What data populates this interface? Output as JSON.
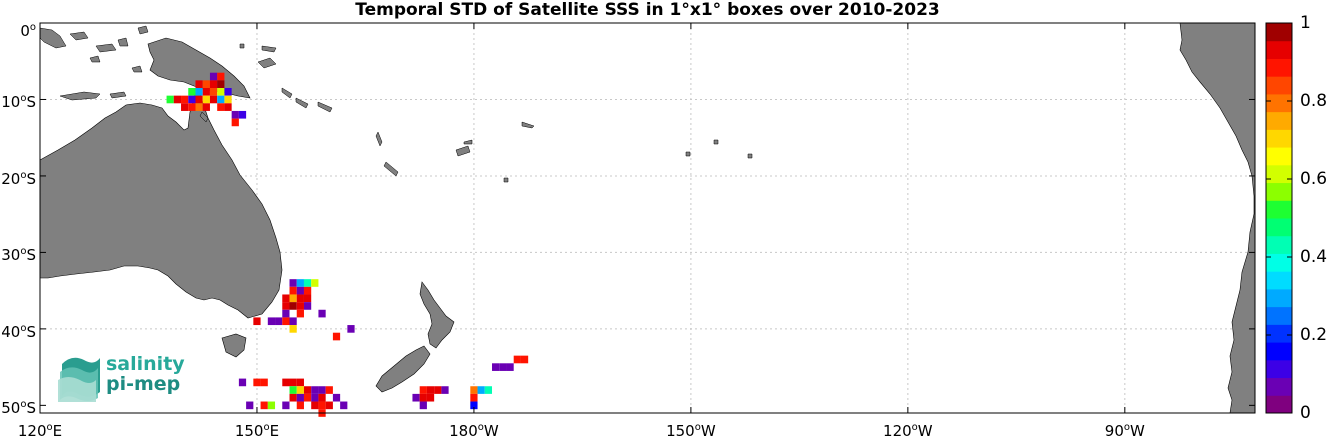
{
  "title": "Temporal STD of Satellite SSS in 1°x1° boxes over 2010-2023",
  "lat_ticks": [
    {
      "num": "0",
      "hemi": ""
    },
    {
      "num": "10",
      "hemi": "S"
    },
    {
      "num": "20",
      "hemi": "S"
    },
    {
      "num": "30",
      "hemi": "S"
    },
    {
      "num": "40",
      "hemi": "S"
    },
    {
      "num": "50",
      "hemi": "S"
    }
  ],
  "lon_ticks": [
    {
      "num": "120",
      "hemi": "E"
    },
    {
      "num": "150",
      "hemi": "E"
    },
    {
      "num": "180",
      "hemi": "W"
    },
    {
      "num": "150",
      "hemi": "W"
    },
    {
      "num": "120",
      "hemi": "W"
    },
    {
      "num": "90",
      "hemi": "W"
    }
  ],
  "colorbar": {
    "ticks": [
      "1",
      "0.8",
      "0.6",
      "0.4",
      "0.2",
      "0"
    ],
    "range": [
      0,
      1
    ],
    "colors": [
      "#7f007f",
      "#6a00b4",
      "#3c00e6",
      "#0000ff",
      "#0032ff",
      "#0073ff",
      "#00aaff",
      "#00dcff",
      "#00ffe6",
      "#00ffb4",
      "#00ff73",
      "#1eff32",
      "#8cff00",
      "#d2ff00",
      "#ffff00",
      "#ffd700",
      "#ffaa00",
      "#ff7300",
      "#ff4600",
      "#ff1400",
      "#e60000",
      "#a00000"
    ]
  },
  "logo": {
    "line1": "salinity",
    "line2": "pi-mep"
  },
  "chart_data": {
    "type": "heatmap",
    "title": "Temporal STD of Satellite SSS in 1°x1° boxes over 2010-2023",
    "xlim": [
      120,
      288
    ],
    "ylim": [
      -51,
      0
    ],
    "xunits": "degrees east (0-360)",
    "cells": [
      [
        144,
        -7,
        0.05
      ],
      [
        145,
        -7,
        0.9
      ],
      [
        142,
        -8,
        0.95
      ],
      [
        143,
        -8,
        0.85
      ],
      [
        144,
        -8,
        0.95
      ],
      [
        145,
        -8,
        1.0
      ],
      [
        141,
        -9,
        0.5
      ],
      [
        142,
        -9,
        0.3
      ],
      [
        143,
        -9,
        0.95
      ],
      [
        144,
        -9,
        0.85
      ],
      [
        145,
        -9,
        0.6
      ],
      [
        146,
        -9,
        0.1
      ],
      [
        138,
        -10,
        0.5
      ],
      [
        139,
        -10,
        0.95
      ],
      [
        140,
        -10,
        0.9
      ],
      [
        141,
        -10,
        0.1
      ],
      [
        142,
        -10,
        0.95
      ],
      [
        143,
        -10,
        0.7
      ],
      [
        144,
        -10,
        0.95
      ],
      [
        145,
        -10,
        0.3
      ],
      [
        146,
        -10,
        0.7
      ],
      [
        140,
        -11,
        0.95
      ],
      [
        141,
        -11,
        0.9
      ],
      [
        142,
        -11,
        0.8
      ],
      [
        143,
        -11,
        0.95
      ],
      [
        145,
        -11,
        0.9
      ],
      [
        146,
        -11,
        0.95
      ],
      [
        147,
        -12,
        0.05
      ],
      [
        148,
        -12,
        0.1
      ],
      [
        147,
        -13,
        0.9
      ],
      [
        155,
        -34,
        0.05
      ],
      [
        156,
        -34,
        0.3
      ],
      [
        157,
        -34,
        0.45
      ],
      [
        158,
        -34,
        0.6
      ],
      [
        155,
        -35,
        0.9
      ],
      [
        156,
        -35,
        0.05
      ],
      [
        157,
        -35,
        0.9
      ],
      [
        154,
        -36,
        0.95
      ],
      [
        155,
        -36,
        0.75
      ],
      [
        156,
        -36,
        0.95
      ],
      [
        157,
        -36,
        0.95
      ],
      [
        154,
        -37,
        0.95
      ],
      [
        155,
        -37,
        1.0
      ],
      [
        156,
        -37,
        0.95
      ],
      [
        157,
        -37,
        0.05
      ],
      [
        154,
        -38,
        0.05
      ],
      [
        156,
        -38,
        0.9
      ],
      [
        159,
        -38,
        0.05
      ],
      [
        150,
        -39,
        0.95
      ],
      [
        152,
        -39,
        0.05
      ],
      [
        153,
        -39,
        0.05
      ],
      [
        154,
        -39,
        0.9
      ],
      [
        155,
        -39,
        0.05
      ],
      [
        155,
        -40,
        0.7
      ],
      [
        163,
        -40,
        0.05
      ],
      [
        161,
        -41,
        0.9
      ],
      [
        148,
        -47,
        0.05
      ],
      [
        150,
        -47,
        0.9
      ],
      [
        151,
        -47,
        0.9
      ],
      [
        154,
        -47,
        0.95
      ],
      [
        155,
        -47,
        0.95
      ],
      [
        156,
        -47,
        0.95
      ],
      [
        155,
        -48,
        0.5
      ],
      [
        156,
        -48,
        0.7
      ],
      [
        157,
        -48,
        0.95
      ],
      [
        158,
        -48,
        0.05
      ],
      [
        159,
        -48,
        0.05
      ],
      [
        160,
        -48,
        0.9
      ],
      [
        155,
        -49,
        0.95
      ],
      [
        156,
        -49,
        0.05
      ],
      [
        157,
        -49,
        0.9
      ],
      [
        158,
        -49,
        0.05
      ],
      [
        159,
        -49,
        0.95
      ],
      [
        161,
        -49,
        0.05
      ],
      [
        149,
        -50,
        0.05
      ],
      [
        151,
        -50,
        0.9
      ],
      [
        152,
        -50,
        0.55
      ],
      [
        154,
        -50,
        0.05
      ],
      [
        156,
        -50,
        0.9
      ],
      [
        158,
        -50,
        0.95
      ],
      [
        159,
        -50,
        0.9
      ],
      [
        160,
        -50,
        0.95
      ],
      [
        162,
        -50,
        0.05
      ],
      [
        159,
        -51,
        0.9
      ],
      [
        173,
        -48,
        0.9
      ],
      [
        174,
        -48,
        0.95
      ],
      [
        175,
        -48,
        0.95
      ],
      [
        176,
        -48,
        0.05
      ],
      [
        172,
        -49,
        0.05
      ],
      [
        173,
        -49,
        0.95
      ],
      [
        174,
        -49,
        0.95
      ],
      [
        173,
        -50,
        0.05
      ],
      [
        180,
        -48,
        0.8
      ],
      [
        181,
        -48,
        0.3
      ],
      [
        182,
        -48,
        0.45
      ],
      [
        180,
        -49,
        0.9
      ],
      [
        180,
        -50,
        0.15
      ],
      [
        183,
        -45,
        0.05
      ],
      [
        184,
        -45,
        0.05
      ],
      [
        185,
        -45,
        0.05
      ],
      [
        186,
        -44,
        0.9
      ],
      [
        187,
        -44,
        0.9
      ]
    ]
  }
}
